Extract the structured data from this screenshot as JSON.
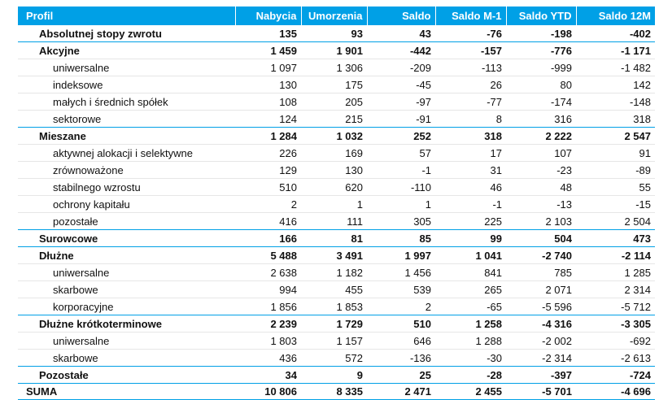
{
  "table": {
    "headers": [
      "Profil",
      "Nabycia",
      "Umorzenia",
      "Saldo",
      "Saldo M-1",
      "Saldo YTD",
      "Saldo 12M"
    ],
    "rows": [
      {
        "kind": "group",
        "label": "Absolutnej stopy zwrotu",
        "values": [
          "135",
          "93",
          "43",
          "-76",
          "-198",
          "-402"
        ]
      },
      {
        "kind": "group",
        "label": "Akcyjne",
        "values": [
          "1 459",
          "1 901",
          "-442",
          "-157",
          "-776",
          "-1 171"
        ]
      },
      {
        "kind": "sub",
        "label": "uniwersalne",
        "values": [
          "1 097",
          "1 306",
          "-209",
          "-113",
          "-999",
          "-1 482"
        ]
      },
      {
        "kind": "sub",
        "label": "indeksowe",
        "values": [
          "130",
          "175",
          "-45",
          "26",
          "80",
          "142"
        ]
      },
      {
        "kind": "sub",
        "label": "małych i średnich spółek",
        "values": [
          "108",
          "205",
          "-97",
          "-77",
          "-174",
          "-148"
        ]
      },
      {
        "kind": "sub",
        "label": "sektorowe",
        "values": [
          "124",
          "215",
          "-91",
          "8",
          "316",
          "318"
        ]
      },
      {
        "kind": "group",
        "label": "Mieszane",
        "values": [
          "1 284",
          "1 032",
          "252",
          "318",
          "2 222",
          "2 547"
        ]
      },
      {
        "kind": "sub",
        "label": "aktywnej alokacji i selektywne",
        "values": [
          "226",
          "169",
          "57",
          "17",
          "107",
          "91"
        ]
      },
      {
        "kind": "sub",
        "label": "zrównoważone",
        "values": [
          "129",
          "130",
          "-1",
          "31",
          "-23",
          "-89"
        ]
      },
      {
        "kind": "sub",
        "label": "stabilnego wzrostu",
        "values": [
          "510",
          "620",
          "-110",
          "46",
          "48",
          "55"
        ]
      },
      {
        "kind": "sub",
        "label": "ochrony kapitału",
        "values": [
          "2",
          "1",
          "1",
          "-1",
          "-13",
          "-15"
        ]
      },
      {
        "kind": "sub",
        "label": "pozostałe",
        "values": [
          "416",
          "111",
          "305",
          "225",
          "2 103",
          "2 504"
        ]
      },
      {
        "kind": "group",
        "label": "Surowcowe",
        "values": [
          "166",
          "81",
          "85",
          "99",
          "504",
          "473"
        ]
      },
      {
        "kind": "group",
        "label": "Dłużne",
        "values": [
          "5 488",
          "3 491",
          "1 997",
          "1 041",
          "-2 740",
          "-2 114"
        ]
      },
      {
        "kind": "sub",
        "label": "uniwersalne",
        "values": [
          "2 638",
          "1 182",
          "1 456",
          "841",
          "785",
          "1 285"
        ]
      },
      {
        "kind": "sub",
        "label": "skarbowe",
        "values": [
          "994",
          "455",
          "539",
          "265",
          "2 071",
          "2 314"
        ]
      },
      {
        "kind": "sub",
        "label": "korporacyjne",
        "values": [
          "1 856",
          "1 853",
          "2",
          "-65",
          "-5 596",
          "-5 712"
        ]
      },
      {
        "kind": "group",
        "label": "Dłużne krótkoterminowe",
        "values": [
          "2 239",
          "1 729",
          "510",
          "1 258",
          "-4 316",
          "-3 305"
        ]
      },
      {
        "kind": "sub",
        "label": "uniwersalne",
        "values": [
          "1 803",
          "1 157",
          "646",
          "1 288",
          "-2 002",
          "-692"
        ]
      },
      {
        "kind": "sub",
        "label": "skarbowe",
        "values": [
          "436",
          "572",
          "-136",
          "-30",
          "-2 314",
          "-2 613"
        ]
      },
      {
        "kind": "group",
        "label": "Pozostałe",
        "values": [
          "34",
          "9",
          "25",
          "-28",
          "-397",
          "-724"
        ]
      },
      {
        "kind": "total",
        "label": "SUMA",
        "values": [
          "10 806",
          "8 335",
          "2 471",
          "2 455",
          "-5 701",
          "-4 696"
        ]
      }
    ]
  },
  "colors": {
    "header_background": "#00a0e6",
    "header_text": "#ffffff",
    "group_separator": "#00a0e6",
    "sub_separator": "#e6e6e6"
  }
}
